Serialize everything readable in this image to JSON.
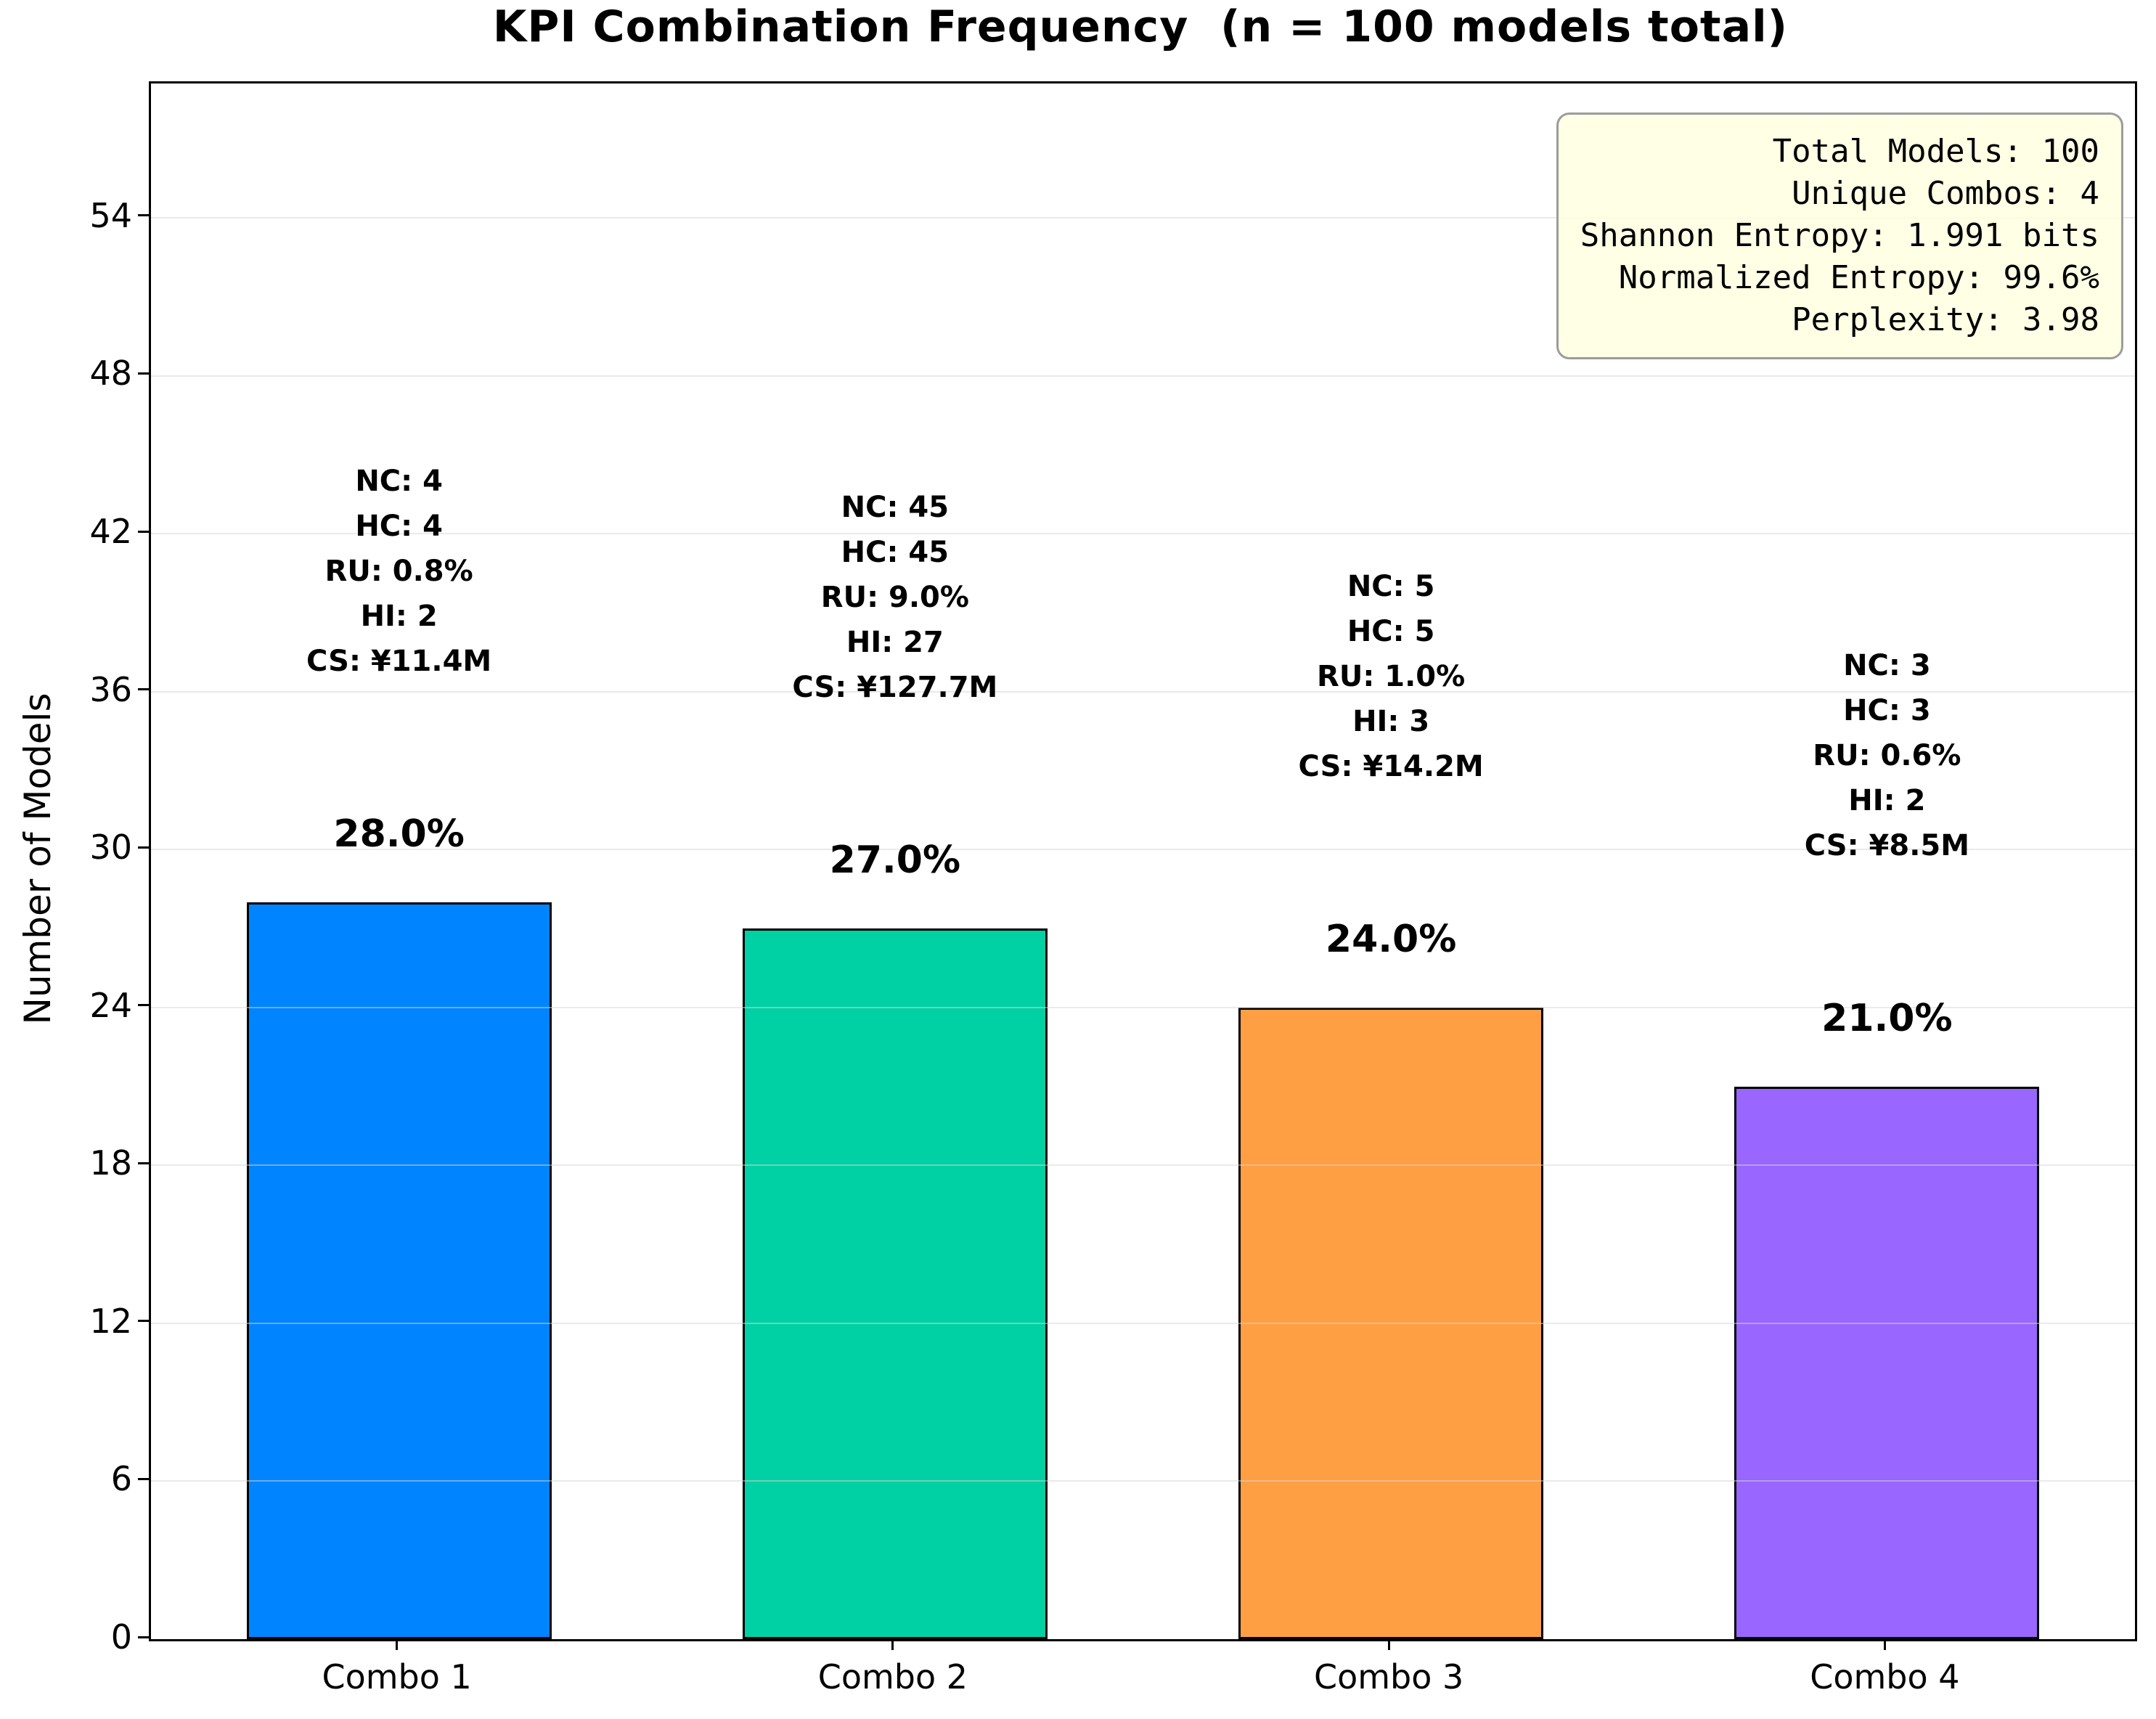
{
  "title": "KPI Combination Frequency  (n = 100 models total)",
  "chart_data": {
    "type": "bar",
    "title": "KPI Combination Frequency  (n = 100 models total)",
    "xlabel": "",
    "ylabel": "Number of Models",
    "categories": [
      "Combo 1",
      "Combo 2",
      "Combo 3",
      "Combo 4"
    ],
    "values": [
      28,
      27,
      24,
      21
    ],
    "pct_labels": [
      "28.0%",
      "27.0%",
      "24.0%",
      "21.0%"
    ],
    "bar_colors": [
      "#0084FF",
      "#00D1A4",
      "#FF9F43",
      "#9966FF"
    ],
    "bar_edge_color": "#000000",
    "ylim": [
      0,
      59.1
    ],
    "yticks": [
      0,
      6,
      12,
      18,
      24,
      30,
      36,
      42,
      48,
      54
    ],
    "grid": true,
    "legend": "none",
    "annotations": [
      [
        "NC: 4",
        "HC: 4",
        "RU: 0.8%",
        "HI: 2",
        "CS: ¥11.4M"
      ],
      [
        "NC: 45",
        "HC: 45",
        "RU: 9.0%",
        "HI: 27",
        "CS: ¥127.7M"
      ],
      [
        "NC: 5",
        "HC: 5",
        "RU: 1.0%",
        "HI: 3",
        "CS: ¥14.2M"
      ],
      [
        "NC: 3",
        "HC: 3",
        "RU: 0.6%",
        "HI: 2",
        "CS: ¥8.5M"
      ]
    ]
  },
  "stats_box": {
    "lines": [
      "Total Models: 100",
      "Unique Combos: 4",
      "Shannon Entropy: 1.991 bits",
      "Normalized Entropy: 99.6%",
      "Perplexity: 3.98"
    ],
    "bg_color": "#FFFFE0",
    "border_color": "#9C9C9C"
  }
}
